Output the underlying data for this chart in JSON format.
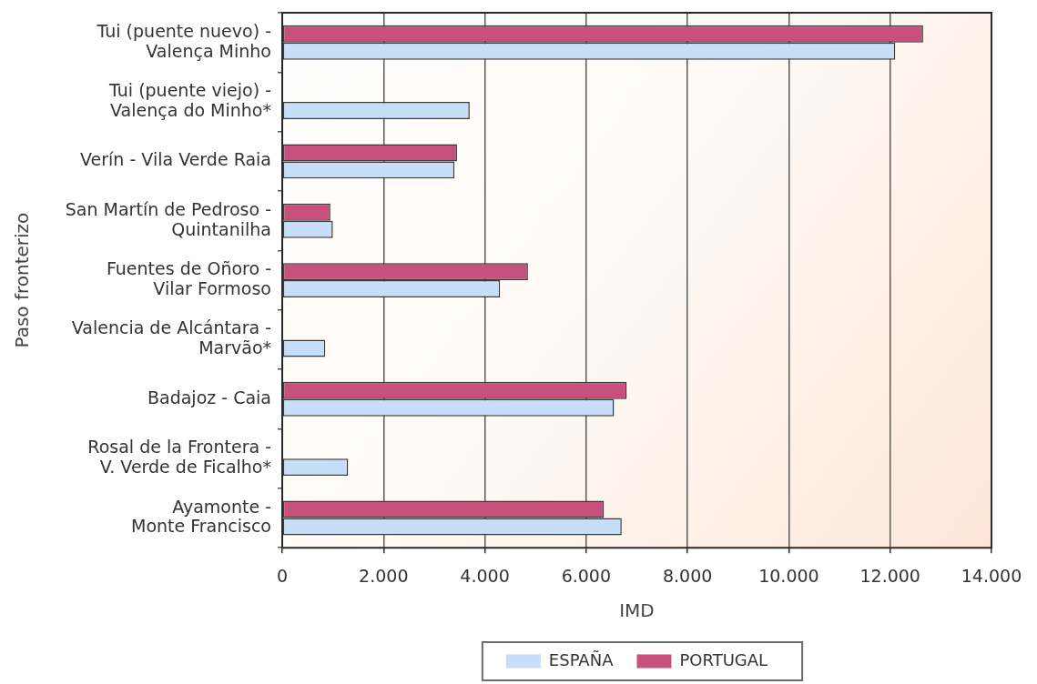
{
  "chart_data": {
    "type": "bar",
    "orientation": "horizontal",
    "categories": [
      "Tui (puente nuevo) -\nValença Minho",
      "Tui (puente viejo) -\nValença do Minho*",
      "Verín - Vila Verde Raia",
      "San Martín de Pedroso -\nQuintanilha",
      "Fuentes de Oñoro -\nVilar Formoso",
      "Valencia de Alcántara -\nMarvão*",
      "Badajoz - Caia",
      "Rosal de la Frontera -\nV. Verde de Ficalho*",
      "Ayamonte -\nMonte Francisco"
    ],
    "series": [
      {
        "name": "ESPAÑA",
        "color": "#c6def7",
        "values": [
          12100,
          3700,
          3400,
          1000,
          4300,
          850,
          6550,
          1300,
          6700
        ]
      },
      {
        "name": "PORTUGAL",
        "color": "#c8507c",
        "values": [
          12650,
          null,
          3450,
          950,
          4850,
          null,
          6800,
          null,
          6350
        ]
      }
    ],
    "xlabel": "IMD",
    "ylabel": "Paso fronterizo",
    "xlim": [
      0,
      14000
    ],
    "xticks": [
      0,
      {
        "value": 2000,
        "label": "2.000"
      },
      {
        "value": 4000,
        "label": "4.000"
      },
      {
        "value": 6000,
        "label": "6.000"
      },
      {
        "value": 8000,
        "label": "8.000"
      },
      {
        "value": 10000,
        "label": "10.000"
      },
      {
        "value": 12000,
        "label": "12.000"
      },
      {
        "value": 14000,
        "label": "14.000"
      }
    ],
    "grid": "x",
    "legend": "bottom"
  }
}
